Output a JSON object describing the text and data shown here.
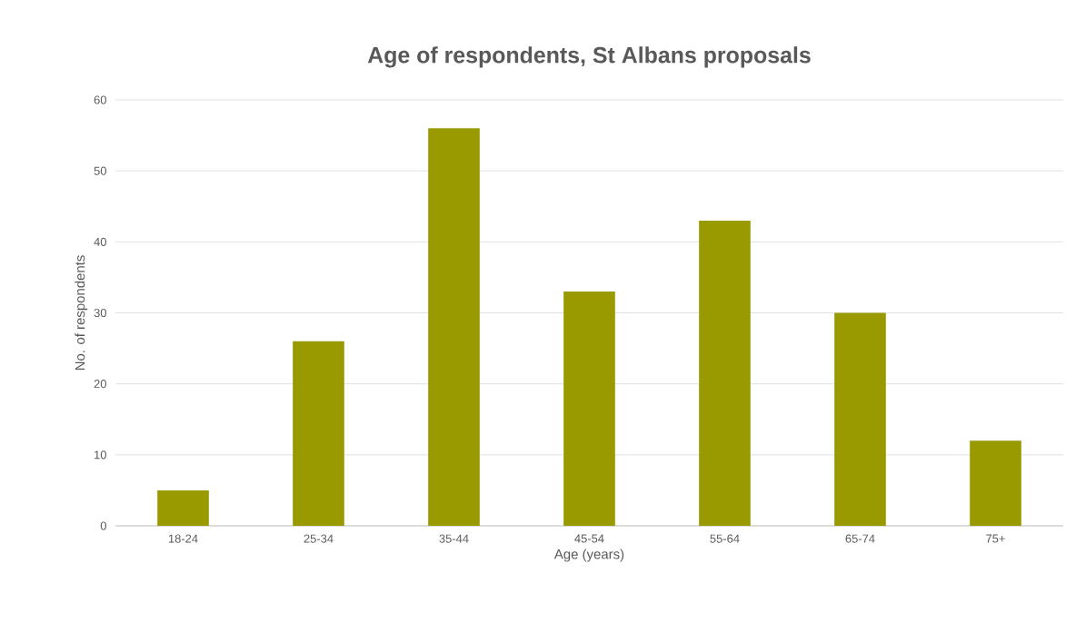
{
  "chart_data": {
    "type": "bar",
    "title": "Age of respondents, St Albans proposals",
    "xlabel": "Age (years)",
    "ylabel": "No. of respondents",
    "categories": [
      "18-24",
      "25-34",
      "35-44",
      "45-54",
      "55-64",
      "65-74",
      "75+"
    ],
    "values": [
      5,
      26,
      56,
      33,
      43,
      30,
      12
    ],
    "color": "#999900",
    "ylim": [
      0,
      60
    ],
    "yticks": [
      0,
      10,
      20,
      30,
      40,
      50,
      60
    ],
    "grid": "y"
  }
}
